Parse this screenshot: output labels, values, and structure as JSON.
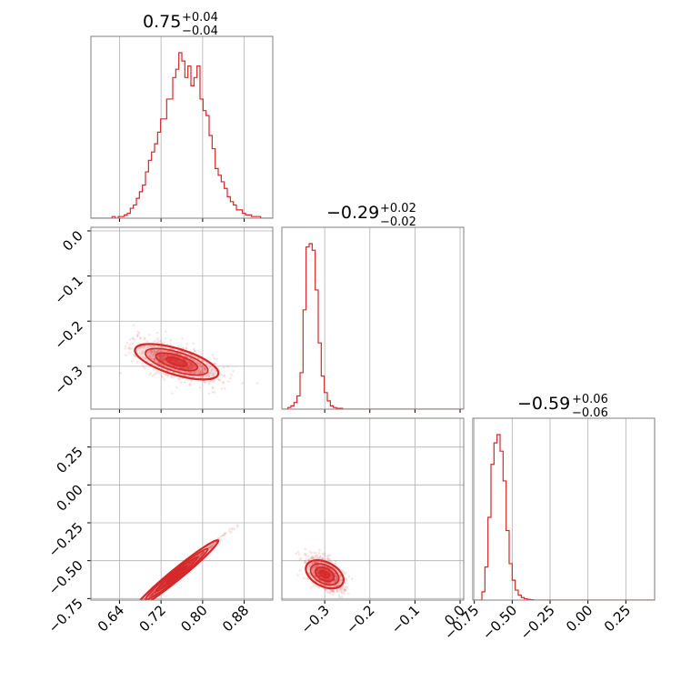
{
  "colors": {
    "series": "#d62728",
    "grid": "#b0b0b0",
    "frame": "#808080"
  },
  "chart_data": {
    "type": "corner",
    "parameters": [
      {
        "median": "0.75",
        "plus": "+0.04",
        "minus": "−0.04",
        "range": [
          0.585,
          0.935
        ],
        "ticks": [
          0.64,
          0.72,
          0.8,
          0.88
        ],
        "tick_labels": [
          "0.64",
          "0.72",
          "0.80",
          "0.88"
        ],
        "hist": [
          0,
          0,
          0,
          0,
          0,
          0,
          0,
          0.01,
          0,
          0.01,
          0.01,
          0.02,
          0.03,
          0.06,
          0.08,
          0.12,
          0.16,
          0.2,
          0.28,
          0.35,
          0.4,
          0.45,
          0.52,
          0.6,
          0.6,
          0.72,
          0.72,
          0.85,
          0.9,
          1.0,
          0.95,
          0.85,
          0.92,
          0.8,
          0.85,
          0.92,
          0.72,
          0.65,
          0.62,
          0.5,
          0.42,
          0.3,
          0.26,
          0.22,
          0.18,
          0.13,
          0.1,
          0.08,
          0.05,
          0.05,
          0.03,
          0.02,
          0.02,
          0.01,
          0.01,
          0.01,
          0,
          0,
          0,
          0
        ]
      },
      {
        "median": "−0.29",
        "plus": "+0.02",
        "minus": "−0.02",
        "range": [
          -0.395,
          0.008
        ],
        "ticks": [
          -0.3,
          -0.2,
          -0.1,
          0.0
        ],
        "tick_labels": [
          "−0.3",
          "−0.2",
          "−0.1",
          "0.0"
        ],
        "y_tick_labels": [
          "0.0",
          "−0.1",
          "−0.2",
          "−0.3"
        ],
        "hist": [
          0,
          0,
          0.01,
          0.02,
          0.04,
          0.08,
          0.22,
          0.6,
          0.98,
          1.0,
          0.96,
          0.72,
          0.4,
          0.2,
          0.1,
          0.05,
          0.02,
          0.01,
          0.005,
          0.005,
          0,
          0,
          0,
          0,
          0,
          0,
          0,
          0,
          0,
          0,
          0,
          0,
          0,
          0,
          0,
          0,
          0,
          0,
          0,
          0,
          0,
          0,
          0,
          0,
          0,
          0,
          0,
          0,
          0,
          0,
          0,
          0,
          0,
          0,
          0,
          0,
          0,
          0,
          0,
          0
        ]
      },
      {
        "median": "−0.59",
        "plus": "+0.06",
        "minus": "−0.06",
        "range": [
          -0.76,
          0.44
        ],
        "ticks": [
          -0.75,
          -0.5,
          -0.25,
          0.0,
          0.25
        ],
        "tick_labels": [
          "−0.75",
          "−0.50",
          "−0.25",
          "0.00",
          "0.25"
        ],
        "y_tick_labels": [
          "0.25",
          "0.00",
          "−0.25",
          "−0.50",
          "−0.75"
        ],
        "hist": [
          0,
          0,
          0,
          0.05,
          0.2,
          0.5,
          0.82,
          0.95,
          1.0,
          0.9,
          0.72,
          0.42,
          0.22,
          0.12,
          0.06,
          0.03,
          0.015,
          0.008,
          0.004,
          0.002,
          0,
          0,
          0,
          0,
          0,
          0,
          0,
          0,
          0,
          0,
          0,
          0,
          0,
          0,
          0,
          0,
          0,
          0,
          0,
          0,
          0,
          0,
          0,
          0,
          0,
          0,
          0,
          0,
          0,
          0,
          0,
          0,
          0,
          0,
          0,
          0,
          0,
          0,
          0,
          0
        ]
      }
    ],
    "joint": {
      "p1_p0": {
        "mean": [
          0.75,
          -0.29
        ],
        "slope": -0.35,
        "spread": [
          0.04,
          0.018
        ]
      },
      "p2_p0": {
        "mean": [
          0.75,
          -0.59
        ],
        "slope": 2.8,
        "spread": [
          0.04,
          0.012
        ]
      },
      "p2_p1": {
        "mean": [
          -0.3,
          -0.59
        ],
        "slope": -1.5,
        "spread": [
          0.02,
          0.05
        ]
      }
    }
  }
}
